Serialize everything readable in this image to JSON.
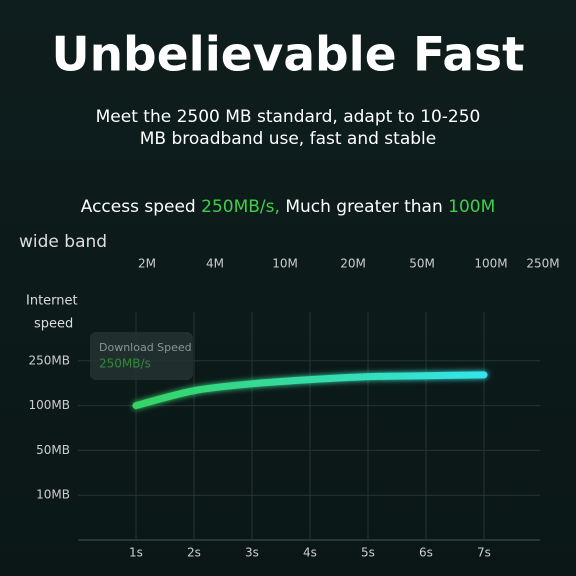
{
  "header": {
    "title": "Unbelievable Fast",
    "subtitle": [
      "Meet the 2500 MB standard, adapt to 10-250",
      "MB broadband use, fast and stable"
    ]
  },
  "access": {
    "label": "Access speed",
    "speed": "250MB/s,",
    "compare": "Much greater than",
    "target": "100M"
  },
  "band": {
    "label": "wide band",
    "ticks": [
      "2M",
      "4M",
      "10M",
      "20M",
      "50M",
      "100M",
      "250M"
    ]
  },
  "chart_data": {
    "type": "line",
    "y_label": [
      "Internet",
      "speed"
    ],
    "tooltip": {
      "title": "Download Speed",
      "value": "250MB/s"
    },
    "categories": [
      "1s",
      "2s",
      "3s",
      "4s",
      "5s",
      "6s",
      "7s"
    ],
    "values": [
      100,
      150,
      173,
      187,
      197,
      200,
      203
    ],
    "color": "#35e0d8",
    "ylim": [
      0,
      250
    ],
    "yticks": [
      {
        "value": 10,
        "label": "10MB"
      },
      {
        "value": 50,
        "label": "50MB"
      },
      {
        "value": 100,
        "label": "100MB"
      },
      {
        "value": 250,
        "label": "250MB"
      }
    ],
    "grid": true
  }
}
